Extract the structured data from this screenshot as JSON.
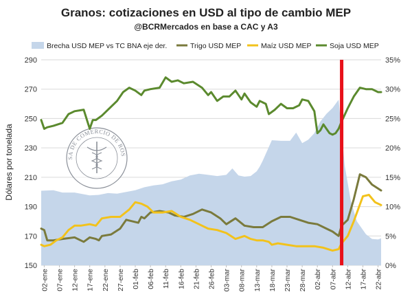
{
  "chart_data": {
    "type": "line",
    "title": "Granos: cotizaciones en USD al tipo de cambio MEP",
    "subtitle": "@BCRMercados en base a CAC y A3",
    "ylabel": "Dólares por tonelada",
    "ylim": [
      150,
      290
    ],
    "yticks": [
      150,
      170,
      190,
      210,
      230,
      250,
      270,
      290
    ],
    "y2lim": [
      0,
      35
    ],
    "y2ticks": [
      "0%",
      "5%",
      "10%",
      "15%",
      "20%",
      "25%",
      "30%",
      "35%"
    ],
    "y2tick_values": [
      0,
      5,
      10,
      15,
      20,
      25,
      30,
      35
    ],
    "legend_position": "top",
    "xtick_labels": [
      "02-ene",
      "07-ene",
      "12-ene",
      "17-ene",
      "22-ene",
      "27-ene",
      "01-feb",
      "06-feb",
      "11-feb",
      "16-feb",
      "21-feb",
      "26-feb",
      "03-mar",
      "08-mar",
      "13-mar",
      "18-mar",
      "23-mar",
      "28-mar",
      "02-abr",
      "07-abr",
      "12-abr",
      "17-abr",
      "22-abr"
    ],
    "xtick_days": [
      2,
      7,
      12,
      17,
      22,
      27,
      32,
      37,
      42,
      47,
      52,
      57,
      62,
      67,
      72,
      77,
      82,
      87,
      92,
      97,
      102,
      107,
      112
    ],
    "xlim_days": [
      1,
      113
    ],
    "event_marker": {
      "day": 100,
      "color": "#e8111a"
    },
    "series": [
      {
        "name": "Brecha USD MEP vs TC BNA eje der.",
        "type": "area",
        "axis": "right",
        "color": "#c5d6ea",
        "x": [
          1,
          5,
          8,
          12,
          15,
          17,
          20,
          23,
          26,
          29,
          32,
          35,
          38,
          41,
          44,
          47,
          50,
          53,
          56,
          59,
          62,
          64,
          66,
          68,
          70,
          72,
          73,
          74,
          77,
          80,
          83,
          85,
          87,
          89,
          91,
          93,
          95,
          97,
          99,
          100,
          101,
          103,
          105,
          108,
          110,
          112,
          113
        ],
        "values": [
          12.7,
          12.8,
          12.4,
          12.4,
          12.1,
          11.9,
          12.0,
          12.3,
          12.2,
          12.5,
          12.8,
          13.3,
          13.6,
          13.8,
          14.3,
          14.6,
          15.3,
          15.6,
          15.4,
          15.2,
          15.4,
          16.5,
          15.3,
          15.1,
          15.2,
          16.0,
          16.8,
          17.8,
          21.3,
          21.2,
          21.2,
          22.6,
          20.8,
          21.4,
          22.5,
          24.5,
          25.8,
          26.8,
          28.2,
          23.0,
          17.0,
          11.0,
          7.5,
          5.3,
          4.5,
          4.4,
          4.6
        ]
      },
      {
        "name": "Trigo USD MEP",
        "type": "line",
        "axis": "left",
        "color": "#7a7a3c",
        "x": [
          1,
          2,
          3,
          5,
          8,
          12,
          14,
          15,
          17,
          19,
          20,
          21,
          24,
          27,
          29,
          31,
          33,
          34,
          35,
          37,
          40,
          43,
          45,
          48,
          51,
          54,
          57,
          60,
          62,
          65,
          68,
          71,
          74,
          77,
          80,
          83,
          86,
          89,
          92,
          95,
          97,
          99,
          100,
          102,
          104,
          106,
          108,
          110,
          113
        ],
        "values": [
          175,
          174,
          167,
          167,
          168,
          169,
          167,
          166,
          169,
          168,
          167,
          170,
          171,
          175,
          181,
          180,
          179,
          183,
          182,
          186,
          187,
          186,
          184,
          183,
          185,
          188,
          186,
          182,
          178,
          182,
          177,
          176,
          176,
          180,
          183,
          183,
          181,
          179,
          178,
          175,
          173,
          170,
          177,
          181,
          195,
          212,
          210,
          205,
          201
        ]
      },
      {
        "name": "Maíz USD MEP",
        "type": "line",
        "axis": "left",
        "color": "#f2c21b",
        "x": [
          1,
          2,
          4,
          6,
          8,
          10,
          12,
          14,
          17,
          19,
          21,
          24,
          27,
          30,
          32,
          34,
          36,
          38,
          41,
          44,
          47,
          50,
          53,
          56,
          59,
          62,
          65,
          68,
          70,
          72,
          74,
          76,
          77,
          79,
          82,
          85,
          88,
          91,
          94,
          97,
          99,
          100,
          102,
          104,
          107,
          109,
          111,
          113
        ],
        "values": [
          164,
          163,
          164,
          167,
          169,
          174,
          177,
          177,
          178,
          177,
          182,
          183,
          183,
          188,
          193,
          192,
          190,
          186,
          186,
          187,
          183,
          181,
          178,
          175,
          174,
          172,
          168,
          170,
          168,
          167,
          167,
          166,
          164,
          165,
          164,
          163,
          163,
          163,
          162,
          160,
          161,
          165,
          170,
          180,
          197,
          198,
          193,
          191
        ]
      },
      {
        "name": "Soja USD MEP",
        "type": "line",
        "axis": "left",
        "color": "#5b8a2e",
        "x": [
          1,
          2,
          3,
          5,
          8,
          10,
          12,
          15,
          17,
          18,
          19,
          21,
          24,
          26,
          28,
          30,
          32,
          34,
          35,
          37,
          40,
          42,
          44,
          46,
          48,
          51,
          54,
          56,
          57,
          59,
          61,
          63,
          65,
          67,
          68,
          70,
          72,
          73,
          75,
          76,
          78,
          80,
          82,
          84,
          86,
          87,
          89,
          91,
          92,
          93,
          94,
          95,
          96,
          97,
          98,
          99,
          100,
          102,
          104,
          106,
          108,
          110,
          112,
          113
        ],
        "values": [
          249,
          243,
          244,
          245,
          247,
          253,
          255,
          256,
          243,
          249,
          249,
          252,
          258,
          262,
          268,
          271,
          269,
          266,
          269,
          270,
          271,
          278,
          275,
          276,
          274,
          275,
          271,
          266,
          268,
          262,
          265,
          265,
          269,
          263,
          267,
          261,
          258,
          262,
          260,
          253,
          256,
          260,
          257,
          257,
          259,
          263,
          262,
          255,
          240,
          242,
          246,
          243,
          240,
          239,
          240,
          243,
          248,
          257,
          265,
          271,
          270,
          270,
          268,
          268
        ]
      }
    ]
  },
  "watermark": {
    "seal_text": "BOLSA DE COMERCIO DE ROSARIO"
  }
}
